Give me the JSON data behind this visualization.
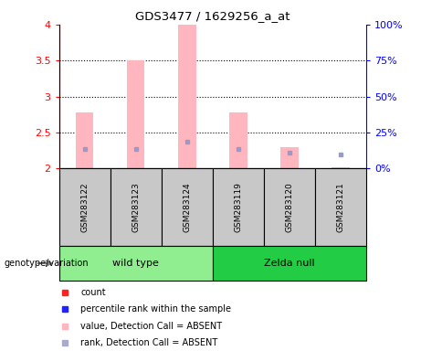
{
  "title": "GDS3477 / 1629256_a_at",
  "samples": [
    "GSM283122",
    "GSM283123",
    "GSM283124",
    "GSM283119",
    "GSM283120",
    "GSM283121"
  ],
  "groups": [
    "wild type",
    "wild type",
    "wild type",
    "Zelda null",
    "Zelda null",
    "Zelda null"
  ],
  "group_names": [
    "wild type",
    "Zelda null"
  ],
  "wt_color": "#90EE90",
  "zn_color": "#22CC44",
  "ylim": [
    2.0,
    4.0
  ],
  "yticks_left": [
    2.0,
    2.5,
    3.0,
    3.5,
    4.0
  ],
  "ytick_labels_left": [
    "2",
    "2.5",
    "3",
    "3.5",
    "4"
  ],
  "ytick_labels_right": [
    "0%",
    "25%",
    "50%",
    "75%",
    "100%"
  ],
  "bar_bottom": 2.0,
  "pink_bar_tops": [
    2.78,
    3.5,
    4.0,
    2.78,
    2.3,
    2.02
  ],
  "blue_sq_values": [
    2.27,
    2.27,
    2.37,
    2.27,
    2.22,
    2.19
  ],
  "pink_bar_color": "#FFB6BE",
  "blue_sq_color": "#9999CC",
  "bar_width": 0.35,
  "sample_bg": "#C8C8C8",
  "legend_colors": [
    "#FF2222",
    "#2222FF",
    "#FFB6BE",
    "#AAAACC"
  ],
  "legend_labels": [
    "count",
    "percentile rank within the sample",
    "value, Detection Call = ABSENT",
    "rank, Detection Call = ABSENT"
  ]
}
